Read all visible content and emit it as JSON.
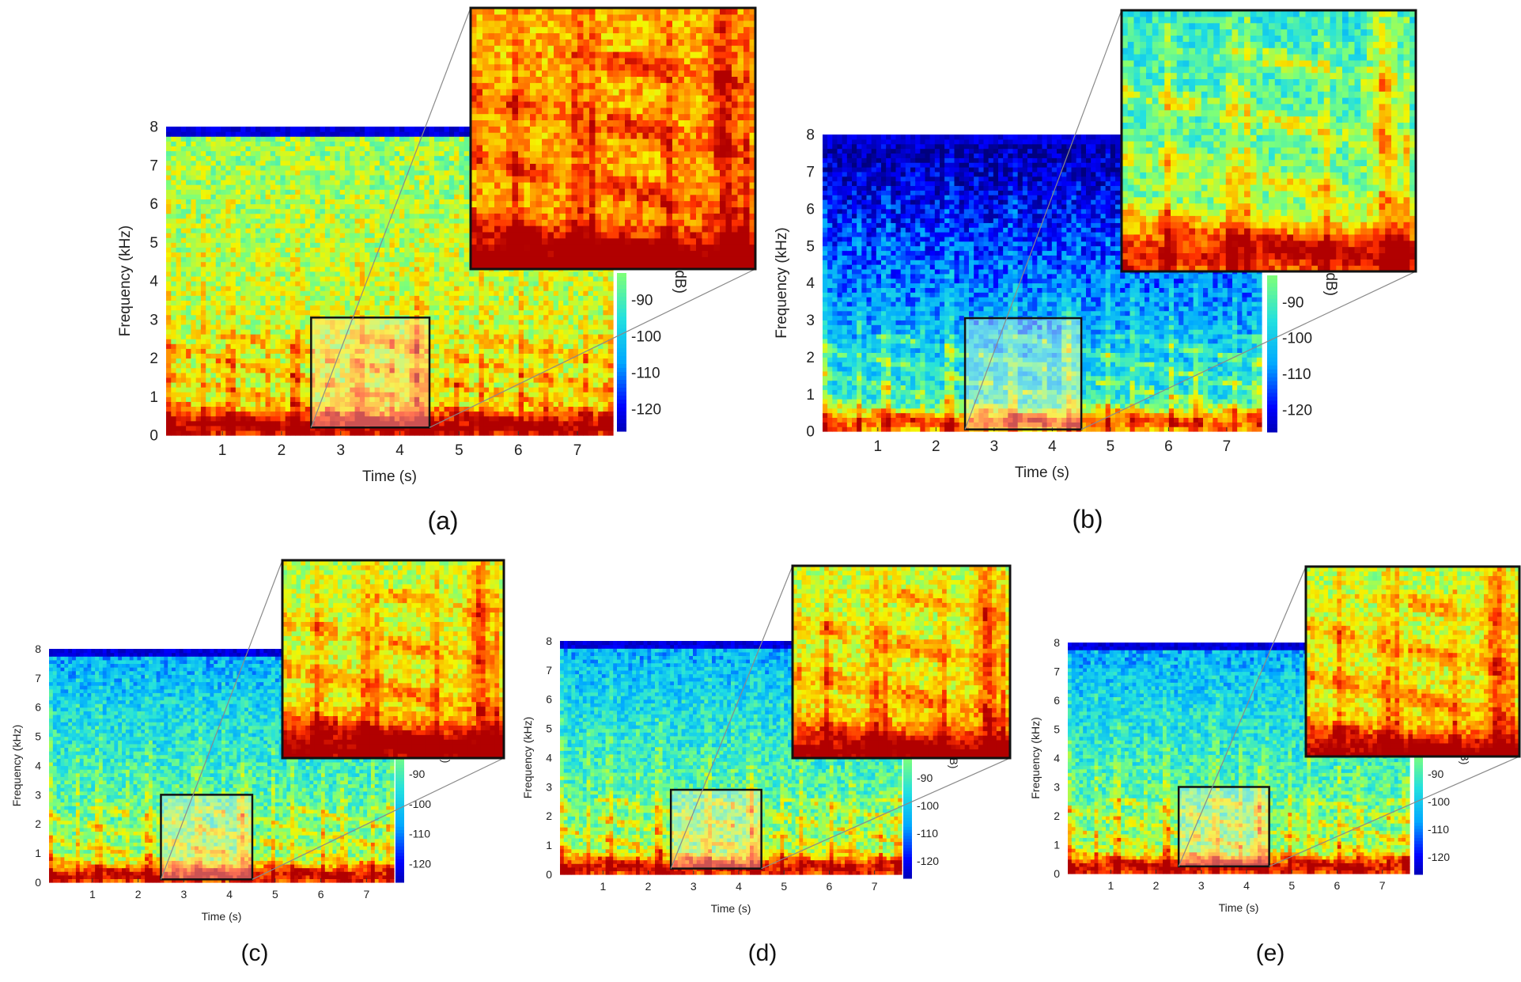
{
  "colors": {
    "colormap": [
      "#00007f",
      "#0000ff",
      "#00a8ff",
      "#22e0e0",
      "#7cff7a",
      "#f5f500",
      "#ff9900",
      "#ff3000",
      "#b00000"
    ],
    "zoom_box": "#111111",
    "connector": "#8a8a8a",
    "highlight": "rgba(255,235,235,0.35)"
  },
  "chart_data": [
    {
      "type": "heatmap",
      "panel": "(a)",
      "xlabel": "Time (s)",
      "ylabel": "Frequency (kHz)",
      "colorbar_label": "(dB)",
      "xticks": [
        "1",
        "2",
        "3",
        "4",
        "5",
        "6",
        "7"
      ],
      "yticks": [
        "0",
        "1",
        "2",
        "3",
        "4",
        "5",
        "6",
        "7",
        "8"
      ],
      "colorbar_ticks": [
        "-90",
        "-100",
        "-110",
        "-120"
      ],
      "xlim": [
        0.05,
        7.6
      ],
      "ylim": [
        0,
        8
      ],
      "zoom_region": {
        "x": [
          2.5,
          4.5
        ],
        "y": [
          0.2,
          3.05
        ]
      },
      "noise_level": "high",
      "top_cutoff_khz": 7.75
    },
    {
      "type": "heatmap",
      "panel": "(b)",
      "xlabel": "Time (s)",
      "ylabel": "Frequency (kHz)",
      "colorbar_label": "(dB)",
      "xticks": [
        "1",
        "2",
        "3",
        "4",
        "5",
        "6",
        "7"
      ],
      "yticks": [
        "0",
        "1",
        "2",
        "3",
        "4",
        "5",
        "6",
        "7",
        "8"
      ],
      "colorbar_ticks": [
        "-90",
        "-100",
        "-110",
        "-120"
      ],
      "xlim": [
        0.05,
        7.6
      ],
      "ylim": [
        0,
        8
      ],
      "zoom_region": {
        "x": [
          2.5,
          4.5
        ],
        "y": [
          0.05,
          3.05
        ]
      },
      "noise_level": "clean",
      "top_cutoff_khz": 7.75
    },
    {
      "type": "heatmap",
      "panel": "(c)",
      "xlabel": "Time (s)",
      "ylabel": "Frequency (kHz)",
      "colorbar_label": "(dB)",
      "xticks": [
        "1",
        "2",
        "3",
        "4",
        "5",
        "6",
        "7"
      ],
      "yticks": [
        "0",
        "1",
        "2",
        "3",
        "4",
        "5",
        "6",
        "7",
        "8"
      ],
      "colorbar_ticks": [
        "-90",
        "-100",
        "-110",
        "-120"
      ],
      "xlim": [
        0.05,
        7.6
      ],
      "ylim": [
        0,
        8
      ],
      "zoom_region": {
        "x": [
          2.5,
          4.5
        ],
        "y": [
          0.1,
          3.0
        ]
      },
      "noise_level": "medium",
      "top_cutoff_khz": 7.75
    },
    {
      "type": "heatmap",
      "panel": "(d)",
      "xlabel": "Time (s)",
      "ylabel": "Frequency (kHz)",
      "colorbar_label": "(dB)",
      "xticks": [
        "1",
        "2",
        "3",
        "4",
        "5",
        "6",
        "7"
      ],
      "yticks": [
        "0",
        "1",
        "2",
        "3",
        "4",
        "5",
        "6",
        "7",
        "8"
      ],
      "colorbar_ticks": [
        "-90",
        "-100",
        "-110",
        "-120"
      ],
      "xlim": [
        0.05,
        7.6
      ],
      "ylim": [
        0,
        8
      ],
      "zoom_region": {
        "x": [
          2.5,
          4.5
        ],
        "y": [
          0.2,
          2.9
        ]
      },
      "noise_level": "medium",
      "top_cutoff_khz": 7.75
    },
    {
      "type": "heatmap",
      "panel": "(e)",
      "xlabel": "Time (s)",
      "ylabel": "Frequency (kHz)",
      "colorbar_label": "(dB)",
      "xticks": [
        "1",
        "2",
        "3",
        "4",
        "5",
        "6",
        "7"
      ],
      "yticks": [
        "0",
        "1",
        "2",
        "3",
        "4",
        "5",
        "6",
        "7",
        "8"
      ],
      "colorbar_ticks": [
        "-90",
        "-100",
        "-110",
        "-120"
      ],
      "xlim": [
        0.05,
        7.6
      ],
      "ylim": [
        0,
        8
      ],
      "zoom_region": {
        "x": [
          2.5,
          4.5
        ],
        "y": [
          0.25,
          3.0
        ]
      },
      "noise_level": "medium",
      "top_cutoff_khz": 7.75
    }
  ]
}
